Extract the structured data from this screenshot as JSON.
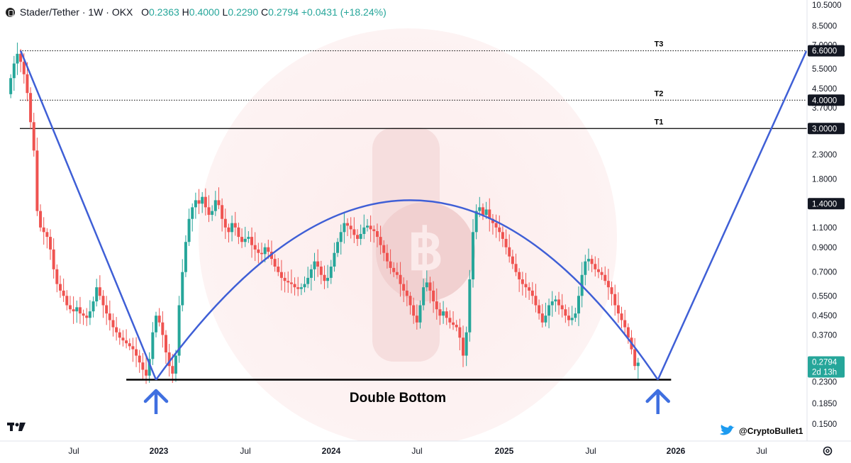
{
  "header": {
    "symbol": "Stader/Tether · 1W · OKX",
    "o_label": "O",
    "o_value": "0.2363",
    "h_label": "H",
    "h_value": "0.4000",
    "l_label": "L",
    "l_value": "0.2290",
    "c_label": "C",
    "c_value": "0.2794",
    "change": "+0.0431 (+18.24%)"
  },
  "colors": {
    "up": "#26a69a",
    "down": "#ef5350",
    "trend_line": "#3f5fd6",
    "arrow": "#3f6fe0",
    "support": "#000000",
    "price_badge": "#26a69a"
  },
  "icons": {
    "logo": "tradingview-logo-icon",
    "twitter": "twitter-bird-icon",
    "settings": "gear-icon",
    "symbol": "stader-icon"
  },
  "watermark": {
    "handle": "@CryptoBullet1"
  },
  "current_price": {
    "value": "0.2794",
    "countdown": "2d 13h"
  },
  "chart_data": {
    "type": "candlestick",
    "symbol": "Stader/Tether",
    "timeframe": "1W",
    "exchange": "OKX",
    "y_scale": "log",
    "ylim": [
      0.13,
      11
    ],
    "y_ticks": [
      "10.5000",
      "8.5000",
      "7.0000",
      "5.5000",
      "4.5000",
      "3.7000",
      "3.0000",
      "2.3000",
      "1.8000",
      "1.4000",
      "1.1000",
      "0.9000",
      "0.7000",
      "0.5500",
      "0.4500",
      "0.3700",
      "0.2794",
      "0.2300",
      "0.1850",
      "0.1500"
    ],
    "x_ticks": [
      "Jul",
      "2023",
      "Jul",
      "2024",
      "Jul",
      "2025",
      "Jul",
      "2026",
      "Jul"
    ],
    "xlim": [
      "2022-02-14",
      "2026-10-31"
    ],
    "levels": [
      {
        "label": "T3",
        "price": 6.6,
        "price_label": "6.6000",
        "style": "dotted"
      },
      {
        "label": "T2",
        "price": 4.0,
        "price_label": "4.0000",
        "style": "dotted"
      },
      {
        "label": "T1",
        "price": 3.0,
        "price_label": "3.0000",
        "style": "solid"
      }
    ],
    "highlighted_price": {
      "price": 1.4,
      "label": "1.4000"
    },
    "support": {
      "price": 0.235,
      "from": "2022-10-24",
      "to": "2025-12-22"
    },
    "annotation": "Double Bottom",
    "bottoms": [
      "2022-12-26",
      "2025-11-24"
    ],
    "trend_lines": [
      {
        "points": [
          [
            "2022-03-14",
            6.6
          ],
          [
            "2022-12-26",
            0.235
          ]
        ]
      },
      {
        "points": [
          [
            "2025-11-24",
            0.235
          ],
          [
            "2026-10-05",
            6.6
          ]
        ]
      }
    ],
    "arc": {
      "from": [
        "2022-12-26",
        0.235
      ],
      "peak": [
        "2024-06-24",
        1.45
      ],
      "to": [
        "2025-11-24",
        0.235
      ]
    },
    "weekly_closes": [
      5.0,
      5.8,
      6.4,
      5.9,
      5.2,
      4.3,
      3.2,
      2.4,
      1.3,
      1.1,
      1.05,
      1.0,
      0.88,
      0.72,
      0.62,
      0.58,
      0.55,
      0.5,
      0.48,
      0.47,
      0.49,
      0.46,
      0.45,
      0.44,
      0.47,
      0.52,
      0.6,
      0.55,
      0.5,
      0.46,
      0.43,
      0.4,
      0.38,
      0.36,
      0.35,
      0.34,
      0.33,
      0.32,
      0.3,
      0.28,
      0.26,
      0.245,
      0.29,
      0.38,
      0.45,
      0.42,
      0.37,
      0.31,
      0.27,
      0.25,
      0.3,
      0.5,
      0.7,
      0.95,
      1.2,
      1.35,
      1.45,
      1.4,
      1.5,
      1.35,
      1.25,
      1.3,
      1.45,
      1.38,
      1.2,
      1.1,
      1.05,
      1.15,
      1.1,
      1.0,
      0.95,
      0.98,
      1.0,
      0.92,
      0.88,
      0.85,
      0.84,
      0.9,
      0.86,
      0.8,
      0.74,
      0.7,
      0.66,
      0.64,
      0.63,
      0.62,
      0.6,
      0.59,
      0.6,
      0.62,
      0.66,
      0.72,
      0.78,
      0.74,
      0.68,
      0.64,
      0.66,
      0.74,
      0.85,
      0.95,
      1.05,
      1.15,
      1.12,
      1.08,
      1.02,
      0.98,
      1.03,
      1.1,
      1.12,
      1.08,
      1.06,
      1.0,
      0.92,
      0.85,
      0.78,
      0.73,
      0.7,
      0.68,
      0.62,
      0.58,
      0.55,
      0.5,
      0.45,
      0.42,
      0.5,
      0.6,
      0.63,
      0.58,
      0.52,
      0.48,
      0.45,
      0.47,
      0.44,
      0.42,
      0.41,
      0.4,
      0.36,
      0.3,
      0.38,
      0.65,
      1.05,
      1.3,
      1.35,
      1.25,
      1.32,
      1.2,
      1.15,
      1.1,
      1.05,
      0.98,
      0.9,
      0.82,
      0.76,
      0.7,
      0.65,
      0.62,
      0.6,
      0.58,
      0.55,
      0.5,
      0.46,
      0.42,
      0.45,
      0.5,
      0.52,
      0.53,
      0.5,
      0.48,
      0.45,
      0.43,
      0.44,
      0.46,
      0.55,
      0.68,
      0.78,
      0.8,
      0.76,
      0.72,
      0.7,
      0.68,
      0.64,
      0.6,
      0.56,
      0.5,
      0.46,
      0.43,
      0.4,
      0.36,
      0.32,
      0.27,
      0.2794
    ]
  }
}
